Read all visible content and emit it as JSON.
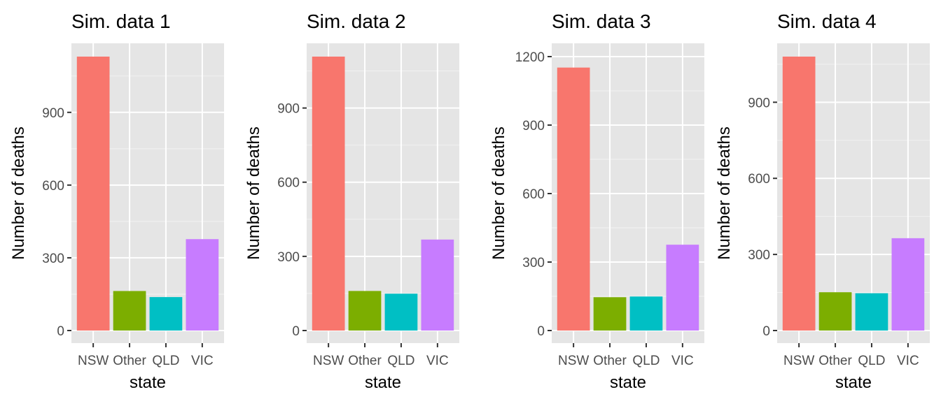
{
  "colors": {
    "panel_background": "#e5e5e5",
    "grid_major": "#ffffff",
    "grid_minor": "#f2f2f2",
    "tick_mark": "#333333",
    "tick_text": "#4d4d4d",
    "text": "#000000"
  },
  "chart_data": [
    {
      "type": "bar",
      "title": "Sim. data 1",
      "xlabel": "state",
      "ylabel": "Number of deaths",
      "categories": [
        "NSW",
        "Other",
        "QLD",
        "VIC"
      ],
      "colors": [
        "#f8766d",
        "#7cae00",
        "#00bfc4",
        "#c77cff"
      ],
      "values": [
        1130,
        163,
        138,
        377
      ],
      "ylim": [
        0,
        1130
      ],
      "yticks": [
        0,
        300,
        600,
        900
      ],
      "legend": "none",
      "grid": true
    },
    {
      "type": "bar",
      "title": "Sim. data 2",
      "xlabel": "state",
      "ylabel": "Number of deaths",
      "categories": [
        "NSW",
        "Other",
        "QLD",
        "VIC"
      ],
      "colors": [
        "#f8766d",
        "#7cae00",
        "#00bfc4",
        "#c77cff"
      ],
      "values": [
        1108,
        160,
        149,
        368
      ],
      "ylim": [
        0,
        1108
      ],
      "yticks": [
        0,
        300,
        600,
        900
      ],
      "legend": "none",
      "grid": true
    },
    {
      "type": "bar",
      "title": "Sim. data 3",
      "xlabel": "state",
      "ylabel": "Number of deaths",
      "categories": [
        "NSW",
        "Other",
        "QLD",
        "VIC"
      ],
      "colors": [
        "#f8766d",
        "#7cae00",
        "#00bfc4",
        "#c77cff"
      ],
      "values": [
        1152,
        146,
        149,
        376
      ],
      "ylim": [
        0,
        1200
      ],
      "yticks": [
        0,
        300,
        600,
        900,
        1200
      ],
      "legend": "none",
      "grid": true
    },
    {
      "type": "bar",
      "title": "Sim. data 4",
      "xlabel": "state",
      "ylabel": "Number of deaths",
      "categories": [
        "NSW",
        "Other",
        "QLD",
        "VIC"
      ],
      "colors": [
        "#f8766d",
        "#7cae00",
        "#00bfc4",
        "#c77cff"
      ],
      "values": [
        1080,
        151,
        147,
        364
      ],
      "ylim": [
        0,
        1080
      ],
      "yticks": [
        0,
        300,
        600,
        900
      ],
      "legend": "none",
      "grid": true
    }
  ]
}
